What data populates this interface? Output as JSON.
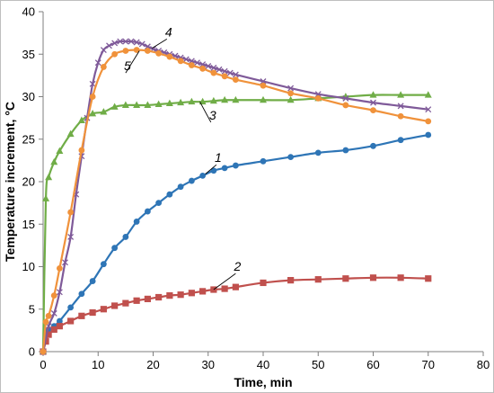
{
  "chart_data": {
    "type": "line",
    "xlabel": "Time, min",
    "ylabel": "Temperature increment, °C",
    "xlim": [
      0,
      80
    ],
    "ylim": [
      0,
      40
    ],
    "xticks": [
      0,
      10,
      20,
      30,
      40,
      50,
      60,
      70,
      80
    ],
    "yticks": [
      0,
      5,
      10,
      15,
      20,
      25,
      30,
      35,
      40
    ],
    "grid": false,
    "legend": "none",
    "series": [
      {
        "name": "1",
        "color": "#2e75b6",
        "marker": "circle",
        "x": [
          0,
          0.5,
          1,
          2,
          3,
          5,
          7,
          9,
          11,
          13,
          15,
          17,
          19,
          21,
          23,
          25,
          27,
          29,
          31,
          33,
          35,
          40,
          45,
          50,
          55,
          60,
          65,
          70
        ],
        "y": [
          0,
          2.2,
          2.6,
          3.0,
          3.6,
          5.2,
          6.8,
          8.3,
          10.3,
          12.2,
          13.5,
          15.3,
          16.5,
          17.5,
          18.5,
          19.4,
          20.1,
          20.7,
          21.3,
          21.6,
          21.9,
          22.4,
          22.9,
          23.4,
          23.7,
          24.2,
          24.9,
          25.5
        ]
      },
      {
        "name": "2",
        "color": "#c0504d",
        "marker": "square",
        "x": [
          0,
          0.5,
          1,
          2,
          3,
          5,
          7,
          9,
          11,
          13,
          15,
          17,
          19,
          21,
          23,
          25,
          27,
          29,
          31,
          33,
          35,
          40,
          45,
          50,
          55,
          60,
          65,
          70
        ],
        "y": [
          0,
          1.2,
          2.0,
          2.6,
          3.0,
          3.6,
          4.2,
          4.6,
          5.0,
          5.4,
          5.7,
          6.0,
          6.2,
          6.4,
          6.6,
          6.7,
          6.9,
          7.1,
          7.3,
          7.4,
          7.6,
          8.1,
          8.4,
          8.5,
          8.6,
          8.7,
          8.7,
          8.6
        ]
      },
      {
        "name": "3",
        "color": "#70ad47",
        "marker": "triangle",
        "x": [
          0,
          0.5,
          1,
          2,
          3,
          5,
          7,
          9,
          11,
          13,
          15,
          17,
          19,
          21,
          23,
          25,
          27,
          29,
          31,
          33,
          35,
          40,
          45,
          50,
          55,
          60,
          65,
          70
        ],
        "y": [
          0,
          18.0,
          20.5,
          22.3,
          23.6,
          25.6,
          27.2,
          28.0,
          28.2,
          28.8,
          29.0,
          29.0,
          29.0,
          29.1,
          29.2,
          29.3,
          29.4,
          29.4,
          29.5,
          29.6,
          29.6,
          29.6,
          29.6,
          29.8,
          30.0,
          30.2,
          30.2,
          30.2
        ]
      },
      {
        "name": "4",
        "color": "#7f5a99",
        "marker": "x",
        "x": [
          0,
          1,
          2,
          3,
          4,
          5,
          6,
          7,
          8,
          9,
          10,
          11,
          12,
          13,
          14,
          15,
          16,
          17,
          18,
          19,
          20,
          21,
          22,
          23,
          24,
          25,
          26,
          27,
          28,
          29,
          30,
          31,
          32,
          33,
          34,
          35,
          40,
          45,
          50,
          55,
          60,
          65,
          70
        ],
        "y": [
          0,
          3.0,
          4.5,
          7.0,
          10.5,
          13.5,
          18.5,
          23.0,
          27.5,
          31.5,
          34.0,
          35.5,
          36.0,
          36.3,
          36.5,
          36.5,
          36.5,
          36.4,
          36.2,
          35.9,
          35.6,
          35.4,
          35.2,
          35.0,
          34.8,
          34.6,
          34.4,
          34.2,
          34.0,
          33.8,
          33.6,
          33.4,
          33.2,
          33.0,
          32.8,
          32.6,
          31.8,
          31.0,
          30.3,
          29.8,
          29.3,
          28.9,
          28.5
        ]
      },
      {
        "name": "5",
        "color": "#f0923b",
        "marker": "circle",
        "x": [
          0,
          0.5,
          1,
          2,
          3,
          5,
          7,
          9,
          11,
          13,
          15,
          17,
          19,
          21,
          23,
          25,
          27,
          29,
          31,
          33,
          35,
          40,
          45,
          50,
          55,
          60,
          65,
          70
        ],
        "y": [
          0,
          3.5,
          4.2,
          6.6,
          9.8,
          16.4,
          23.7,
          30.0,
          33.5,
          35.0,
          35.4,
          35.5,
          35.4,
          35.1,
          34.7,
          34.2,
          33.7,
          33.3,
          32.8,
          32.4,
          32.0,
          31.3,
          30.4,
          29.8,
          29.0,
          28.4,
          27.7,
          27.1
        ]
      }
    ],
    "annotations": [
      {
        "text": "1",
        "x": 31.5,
        "y": 22.2,
        "target_x": 29.5,
        "target_y": 20.9
      },
      {
        "text": "2",
        "x": 35.0,
        "y": 9.4,
        "target_x": 31.0,
        "target_y": 7.3
      },
      {
        "text": "3",
        "x": 30.5,
        "y": 27.2,
        "target_x": 28.5,
        "target_y": 29.4
      },
      {
        "text": "4",
        "x": 22.5,
        "y": 37.0,
        "target_x": 19.8,
        "target_y": 35.7
      },
      {
        "text": "5",
        "x": 15.0,
        "y": 33.0,
        "target_x": 17.5,
        "target_y": 35.4
      }
    ]
  }
}
